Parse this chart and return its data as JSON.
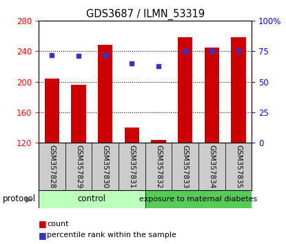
{
  "title": "GDS3687 / ILMN_53319",
  "samples": [
    "GSM357828",
    "GSM357829",
    "GSM357830",
    "GSM357831",
    "GSM357832",
    "GSM357833",
    "GSM357834",
    "GSM357835"
  ],
  "counts": [
    204,
    196,
    248,
    140,
    124,
    258,
    245,
    258
  ],
  "percentile_ranks": [
    72,
    71,
    72,
    65,
    63,
    75,
    75,
    75
  ],
  "ylim_left": [
    120,
    280
  ],
  "ylim_right": [
    0,
    100
  ],
  "yticks_left": [
    120,
    160,
    200,
    240,
    280
  ],
  "yticks_right": [
    0,
    25,
    50,
    75,
    100
  ],
  "bar_color": "#cc0000",
  "dot_color": "#3333cc",
  "control_label": "control",
  "diabetes_label": "exposure to maternal diabetes",
  "protocol_label": "protocol",
  "legend_count": "count",
  "legend_percentile": "percentile rank within the sample",
  "control_bg": "#bbffbb",
  "diabetes_bg": "#55cc55",
  "tick_area_bg": "#cccccc",
  "bar_width": 0.55
}
